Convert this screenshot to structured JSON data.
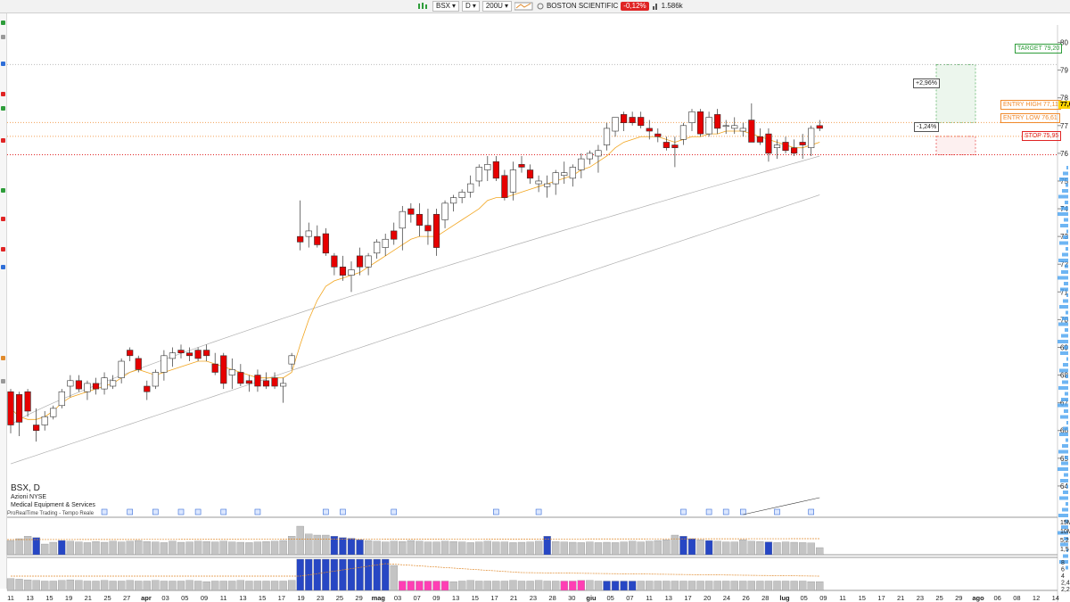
{
  "toolbar": {
    "symbol": "BSX",
    "timeframe": "D",
    "bars": "200U",
    "company": "BOSTON SCIENTIFIC",
    "change": "-0,12%",
    "volume": "1.586k"
  },
  "instrument": {
    "symbol_tf": "BSX, D",
    "exchange": "Azioni NYSE",
    "sector": "Medical Equipment & Services",
    "source": "ProRealTime Trading - Tempo Reale"
  },
  "levels": {
    "target_label": "TARGET 79,20",
    "entry_high_label": "ENTRY HIGH 77,11",
    "entry_low_label": "ENTRY LOW 76,61",
    "stop_label": "STOP 75,95",
    "target": 79.2,
    "entry_high": 77.11,
    "entry_low": 76.61,
    "stop": 75.95,
    "gain_pct": "+2,96%",
    "loss_pct": "-1,24%",
    "price_tag": "77,0",
    "colors": {
      "target": "#2e9d3a",
      "entry": "#f08a2c",
      "stop": "#e02424"
    }
  },
  "chart_data": {
    "type": "candlestick",
    "title": "BSX, D",
    "ylim": [
      63,
      80.5
    ],
    "y_ticks": [
      64,
      65,
      66,
      67,
      68,
      69,
      70,
      71,
      72,
      73,
      74,
      75,
      76,
      77,
      78,
      79,
      80
    ],
    "x_tick_labels": [
      "11",
      "13",
      "15",
      "19",
      "21",
      "25",
      "27",
      "apr",
      "03",
      "05",
      "09",
      "11",
      "13",
      "15",
      "17",
      "19",
      "23",
      "25",
      "29",
      "mag",
      "03",
      "07",
      "09",
      "13",
      "15",
      "17",
      "21",
      "23",
      "28",
      "30",
      "giu",
      "05",
      "07",
      "11",
      "13",
      "17",
      "20",
      "24",
      "26",
      "28",
      "lug",
      "05",
      "09",
      "11",
      "15",
      "17",
      "21",
      "23",
      "25",
      "29",
      "ago",
      "06",
      "08",
      "12",
      "14"
    ],
    "candles": [
      [
        67.4,
        67.5,
        65.9,
        66.2
      ],
      [
        67.3,
        67.4,
        65.8,
        66.3
      ],
      [
        67.4,
        67.5,
        66.5,
        66.7
      ],
      [
        66.2,
        66.8,
        65.6,
        66.0
      ],
      [
        66.2,
        66.7,
        66.0,
        66.5
      ],
      [
        66.5,
        66.9,
        66.4,
        66.8
      ],
      [
        66.9,
        67.5,
        66.8,
        67.4
      ],
      [
        67.6,
        68.0,
        67.2,
        67.8
      ],
      [
        67.8,
        68.0,
        67.4,
        67.5
      ],
      [
        67.4,
        67.8,
        67.1,
        67.7
      ],
      [
        67.7,
        67.9,
        67.3,
        67.5
      ],
      [
        67.5,
        68.1,
        67.3,
        67.9
      ],
      [
        67.6,
        68.0,
        67.5,
        67.8
      ],
      [
        67.9,
        68.6,
        67.7,
        68.5
      ],
      [
        68.9,
        69.0,
        68.5,
        68.7
      ],
      [
        68.6,
        68.7,
        68.1,
        68.2
      ],
      [
        67.6,
        67.8,
        67.1,
        67.4
      ],
      [
        67.6,
        68.2,
        67.5,
        68.1
      ],
      [
        68.1,
        68.9,
        67.8,
        68.7
      ],
      [
        68.6,
        69.0,
        68.3,
        68.8
      ],
      [
        68.9,
        69.1,
        68.6,
        68.8
      ],
      [
        68.8,
        69.0,
        68.5,
        68.7
      ],
      [
        68.9,
        69.0,
        68.5,
        68.6
      ],
      [
        68.9,
        69.1,
        68.5,
        68.7
      ],
      [
        68.4,
        68.8,
        68.0,
        68.1
      ],
      [
        68.7,
        68.8,
        67.5,
        67.7
      ],
      [
        68.0,
        68.6,
        67.5,
        68.2
      ],
      [
        68.1,
        68.4,
        67.6,
        67.7
      ],
      [
        67.8,
        68.0,
        67.4,
        67.7
      ],
      [
        68.0,
        68.2,
        67.4,
        67.6
      ],
      [
        67.8,
        68.1,
        67.5,
        67.6
      ],
      [
        67.9,
        68.1,
        67.5,
        67.6
      ],
      [
        67.6,
        67.9,
        67.0,
        67.7
      ],
      [
        68.4,
        68.8,
        68.2,
        68.7
      ],
      [
        73.0,
        74.3,
        72.5,
        72.8
      ],
      [
        73.0,
        73.5,
        72.6,
        73.2
      ],
      [
        73.0,
        73.4,
        72.6,
        72.7
      ],
      [
        73.1,
        73.3,
        72.3,
        72.4
      ],
      [
        72.3,
        72.4,
        71.6,
        71.9
      ],
      [
        71.9,
        72.3,
        71.4,
        71.6
      ],
      [
        71.6,
        72.1,
        71.0,
        71.8
      ],
      [
        72.3,
        72.6,
        71.6,
        71.9
      ],
      [
        71.9,
        72.4,
        71.6,
        72.3
      ],
      [
        72.4,
        72.9,
        72.2,
        72.8
      ],
      [
        72.6,
        73.1,
        72.3,
        72.9
      ],
      [
        73.2,
        73.5,
        72.7,
        72.9
      ],
      [
        73.3,
        74.1,
        72.5,
        73.9
      ],
      [
        74.0,
        74.2,
        73.5,
        73.8
      ],
      [
        73.8,
        74.2,
        73.0,
        73.4
      ],
      [
        73.4,
        74.0,
        72.7,
        73.2
      ],
      [
        73.8,
        74.0,
        72.3,
        72.6
      ],
      [
        73.6,
        74.3,
        73.3,
        74.2
      ],
      [
        74.2,
        74.5,
        73.9,
        74.4
      ],
      [
        74.4,
        74.7,
        74.2,
        74.6
      ],
      [
        74.6,
        75.2,
        74.4,
        74.9
      ],
      [
        75.0,
        75.6,
        74.8,
        75.5
      ],
      [
        75.4,
        75.9,
        75.0,
        75.6
      ],
      [
        75.7,
        75.9,
        75.0,
        75.1
      ],
      [
        75.2,
        75.4,
        74.3,
        74.4
      ],
      [
        74.6,
        75.7,
        74.3,
        75.4
      ],
      [
        75.6,
        75.9,
        75.3,
        75.5
      ],
      [
        75.4,
        75.6,
        74.9,
        75.1
      ],
      [
        74.9,
        75.2,
        74.6,
        75.0
      ],
      [
        74.8,
        75.2,
        74.4,
        74.9
      ],
      [
        74.9,
        75.4,
        74.5,
        75.3
      ],
      [
        75.2,
        75.7,
        74.9,
        75.3
      ],
      [
        75.1,
        75.6,
        74.8,
        75.5
      ],
      [
        75.4,
        76.0,
        75.1,
        75.8
      ],
      [
        75.8,
        76.1,
        75.6,
        76.0
      ],
      [
        75.9,
        76.3,
        75.3,
        76.1
      ],
      [
        76.3,
        77.1,
        76.1,
        76.9
      ],
      [
        76.8,
        77.3,
        76.6,
        77.3
      ],
      [
        77.4,
        77.5,
        76.8,
        77.1
      ],
      [
        77.3,
        77.5,
        77.0,
        77.1
      ],
      [
        77.3,
        77.5,
        76.9,
        77.0
      ],
      [
        76.9,
        77.2,
        76.5,
        76.8
      ],
      [
        76.7,
        76.9,
        76.4,
        76.6
      ],
      [
        76.4,
        76.6,
        76.1,
        76.2
      ],
      [
        76.3,
        76.6,
        75.5,
        76.2
      ],
      [
        76.5,
        77.1,
        76.3,
        77.0
      ],
      [
        77.1,
        77.6,
        76.8,
        77.5
      ],
      [
        77.5,
        77.6,
        76.6,
        76.7
      ],
      [
        76.7,
        77.5,
        76.6,
        77.3
      ],
      [
        77.4,
        77.6,
        76.7,
        76.9
      ],
      [
        77.0,
        77.2,
        76.7,
        77.0
      ],
      [
        76.9,
        77.3,
        76.7,
        77.0
      ],
      [
        76.8,
        77.1,
        76.6,
        76.9
      ],
      [
        77.2,
        77.8,
        76.5,
        76.4
      ],
      [
        76.6,
        76.9,
        76.3,
        76.4
      ],
      [
        76.7,
        76.9,
        75.7,
        76.0
      ],
      [
        76.2,
        76.5,
        75.8,
        76.3
      ],
      [
        76.4,
        76.6,
        76.0,
        76.1
      ],
      [
        76.2,
        76.5,
        75.9,
        76.0
      ],
      [
        76.4,
        76.7,
        75.8,
        76.3
      ],
      [
        76.2,
        77.0,
        75.9,
        76.9
      ],
      [
        77.0,
        77.2,
        76.8,
        76.9
      ]
    ],
    "ma_fast": [
      66.8,
      66.5,
      66.4,
      66.4,
      66.5,
      66.7,
      67.0,
      67.2,
      67.3,
      67.4,
      67.5,
      67.6,
      67.7,
      67.9,
      68.1,
      68.2,
      68.1,
      68.0,
      68.1,
      68.2,
      68.3,
      68.4,
      68.5,
      68.5,
      68.4,
      68.3,
      68.2,
      68.1,
      68.0,
      67.9,
      67.9,
      67.9,
      67.9,
      68.1,
      69.1,
      70.0,
      70.7,
      71.2,
      71.4,
      71.5,
      71.6,
      71.7,
      71.9,
      72.1,
      72.3,
      72.5,
      72.7,
      72.9,
      73.0,
      73.0,
      73.0,
      73.2,
      73.4,
      73.6,
      73.8,
      74.0,
      74.3,
      74.4,
      74.4,
      74.5,
      74.6,
      74.7,
      74.8,
      74.9,
      75.0,
      75.1,
      75.2,
      75.4,
      75.5,
      75.7,
      75.9,
      76.2,
      76.4,
      76.5,
      76.6,
      76.6,
      76.6,
      76.5,
      76.4,
      76.5,
      76.6,
      76.6,
      76.7,
      76.7,
      76.8,
      76.8,
      76.8,
      76.7,
      76.6,
      76.5,
      76.4,
      76.3,
      76.2,
      76.2,
      76.3,
      76.4
    ],
    "ma_mid_start": 66.2,
    "ma_mid_end": 75.9,
    "ma_slow_start": 64.8,
    "ma_slow_end": 74.5,
    "volume_a": [
      40,
      45,
      52,
      48,
      30,
      35,
      40,
      38,
      36,
      34,
      37,
      35,
      38,
      36,
      38,
      40,
      37,
      36,
      34,
      38,
      35,
      36,
      38,
      37,
      36,
      38,
      36,
      35,
      34,
      36,
      37,
      38,
      40,
      52,
      80,
      58,
      55,
      55,
      52,
      48,
      46,
      42,
      40,
      38,
      36,
      38,
      37,
      40,
      38,
      36,
      36,
      38,
      37,
      36,
      34,
      36,
      38,
      36,
      36,
      34,
      35,
      36,
      38,
      52,
      37,
      36,
      35,
      34,
      36,
      34,
      35,
      34,
      36,
      38,
      36,
      38,
      40,
      42,
      55,
      52,
      45,
      42,
      40,
      38,
      36,
      36,
      42,
      38,
      37,
      36,
      34,
      36,
      35,
      34,
      33,
      20
    ],
    "volume_a_blue": [
      3,
      6,
      38,
      39,
      40,
      41,
      63,
      79,
      80,
      82,
      89
    ],
    "volume_b": [
      38,
      36,
      34,
      32,
      30,
      30,
      32,
      34,
      32,
      30,
      30,
      32,
      30,
      30,
      32,
      30,
      30,
      32,
      30,
      30,
      30,
      32,
      30,
      28,
      30,
      30,
      30,
      32,
      30,
      30,
      30,
      30,
      30,
      32,
      100,
      100,
      100,
      100,
      100,
      100,
      100,
      100,
      100,
      100,
      100,
      80,
      30,
      30,
      30,
      30,
      30,
      30,
      28,
      30,
      32,
      30,
      30,
      30,
      30,
      32,
      30,
      30,
      32,
      30,
      30,
      30,
      30,
      32,
      32,
      30,
      30,
      30,
      30,
      30,
      30,
      30,
      30,
      30,
      30,
      30,
      30,
      30,
      30,
      30,
      30,
      30,
      30,
      30,
      30,
      30,
      30,
      30,
      30,
      30,
      28,
      28
    ],
    "volume_b_blue": [
      34,
      35,
      36,
      37,
      38,
      39,
      40,
      41,
      42,
      43,
      44,
      70,
      71,
      72,
      73
    ],
    "volume_b_pink": [
      46,
      47,
      48,
      49,
      50,
      51,
      65,
      66,
      67
    ],
    "colors": {
      "up": "#ffffff",
      "down": "#e60000",
      "ma_fast": "#f2a51e",
      "ma_other": "#b0b0b0",
      "vol": "#c4c4c4",
      "vol_blue": "#2747c4",
      "vol_pink": "#ff3fb4"
    },
    "vol_axis_a": [
      "15M",
      "10M",
      "5,2",
      "1,5"
    ],
    "vol_axis_b": [
      "8",
      "6",
      "4",
      "2,4",
      "2,2"
    ],
    "grid": false
  }
}
